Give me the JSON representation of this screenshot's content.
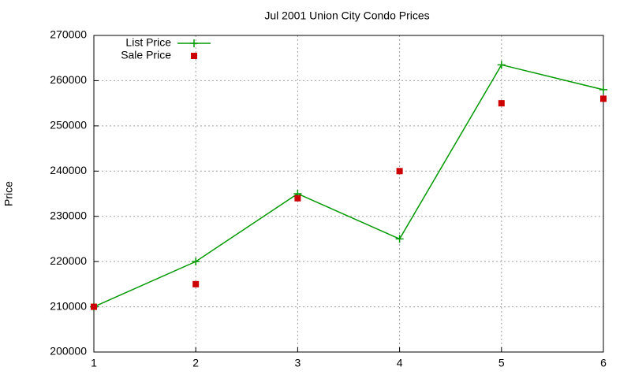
{
  "chart_data": {
    "type": "line",
    "title": "Jul 2001 Union City Condo Prices",
    "y_label": "Price",
    "x": [
      1,
      2,
      3,
      4,
      5,
      6
    ],
    "series": [
      {
        "name": "List Price",
        "color": "#009900",
        "style": "linespoints",
        "values": [
          210000,
          220000,
          235000,
          225000,
          263500,
          258000
        ]
      },
      {
        "name": "Sale Price",
        "color": "#cc0000",
        "style": "points",
        "values": [
          210000,
          215000,
          234000,
          240000,
          255000,
          256000
        ]
      }
    ],
    "xlim": [
      1,
      6
    ],
    "xticks": [
      1,
      2,
      3,
      4,
      5,
      6
    ],
    "ylim": [
      200000,
      270000
    ],
    "yticks": [
      200000,
      210000,
      220000,
      230000,
      240000,
      250000,
      260000,
      270000
    ],
    "grid": true,
    "legend": "top-left"
  }
}
